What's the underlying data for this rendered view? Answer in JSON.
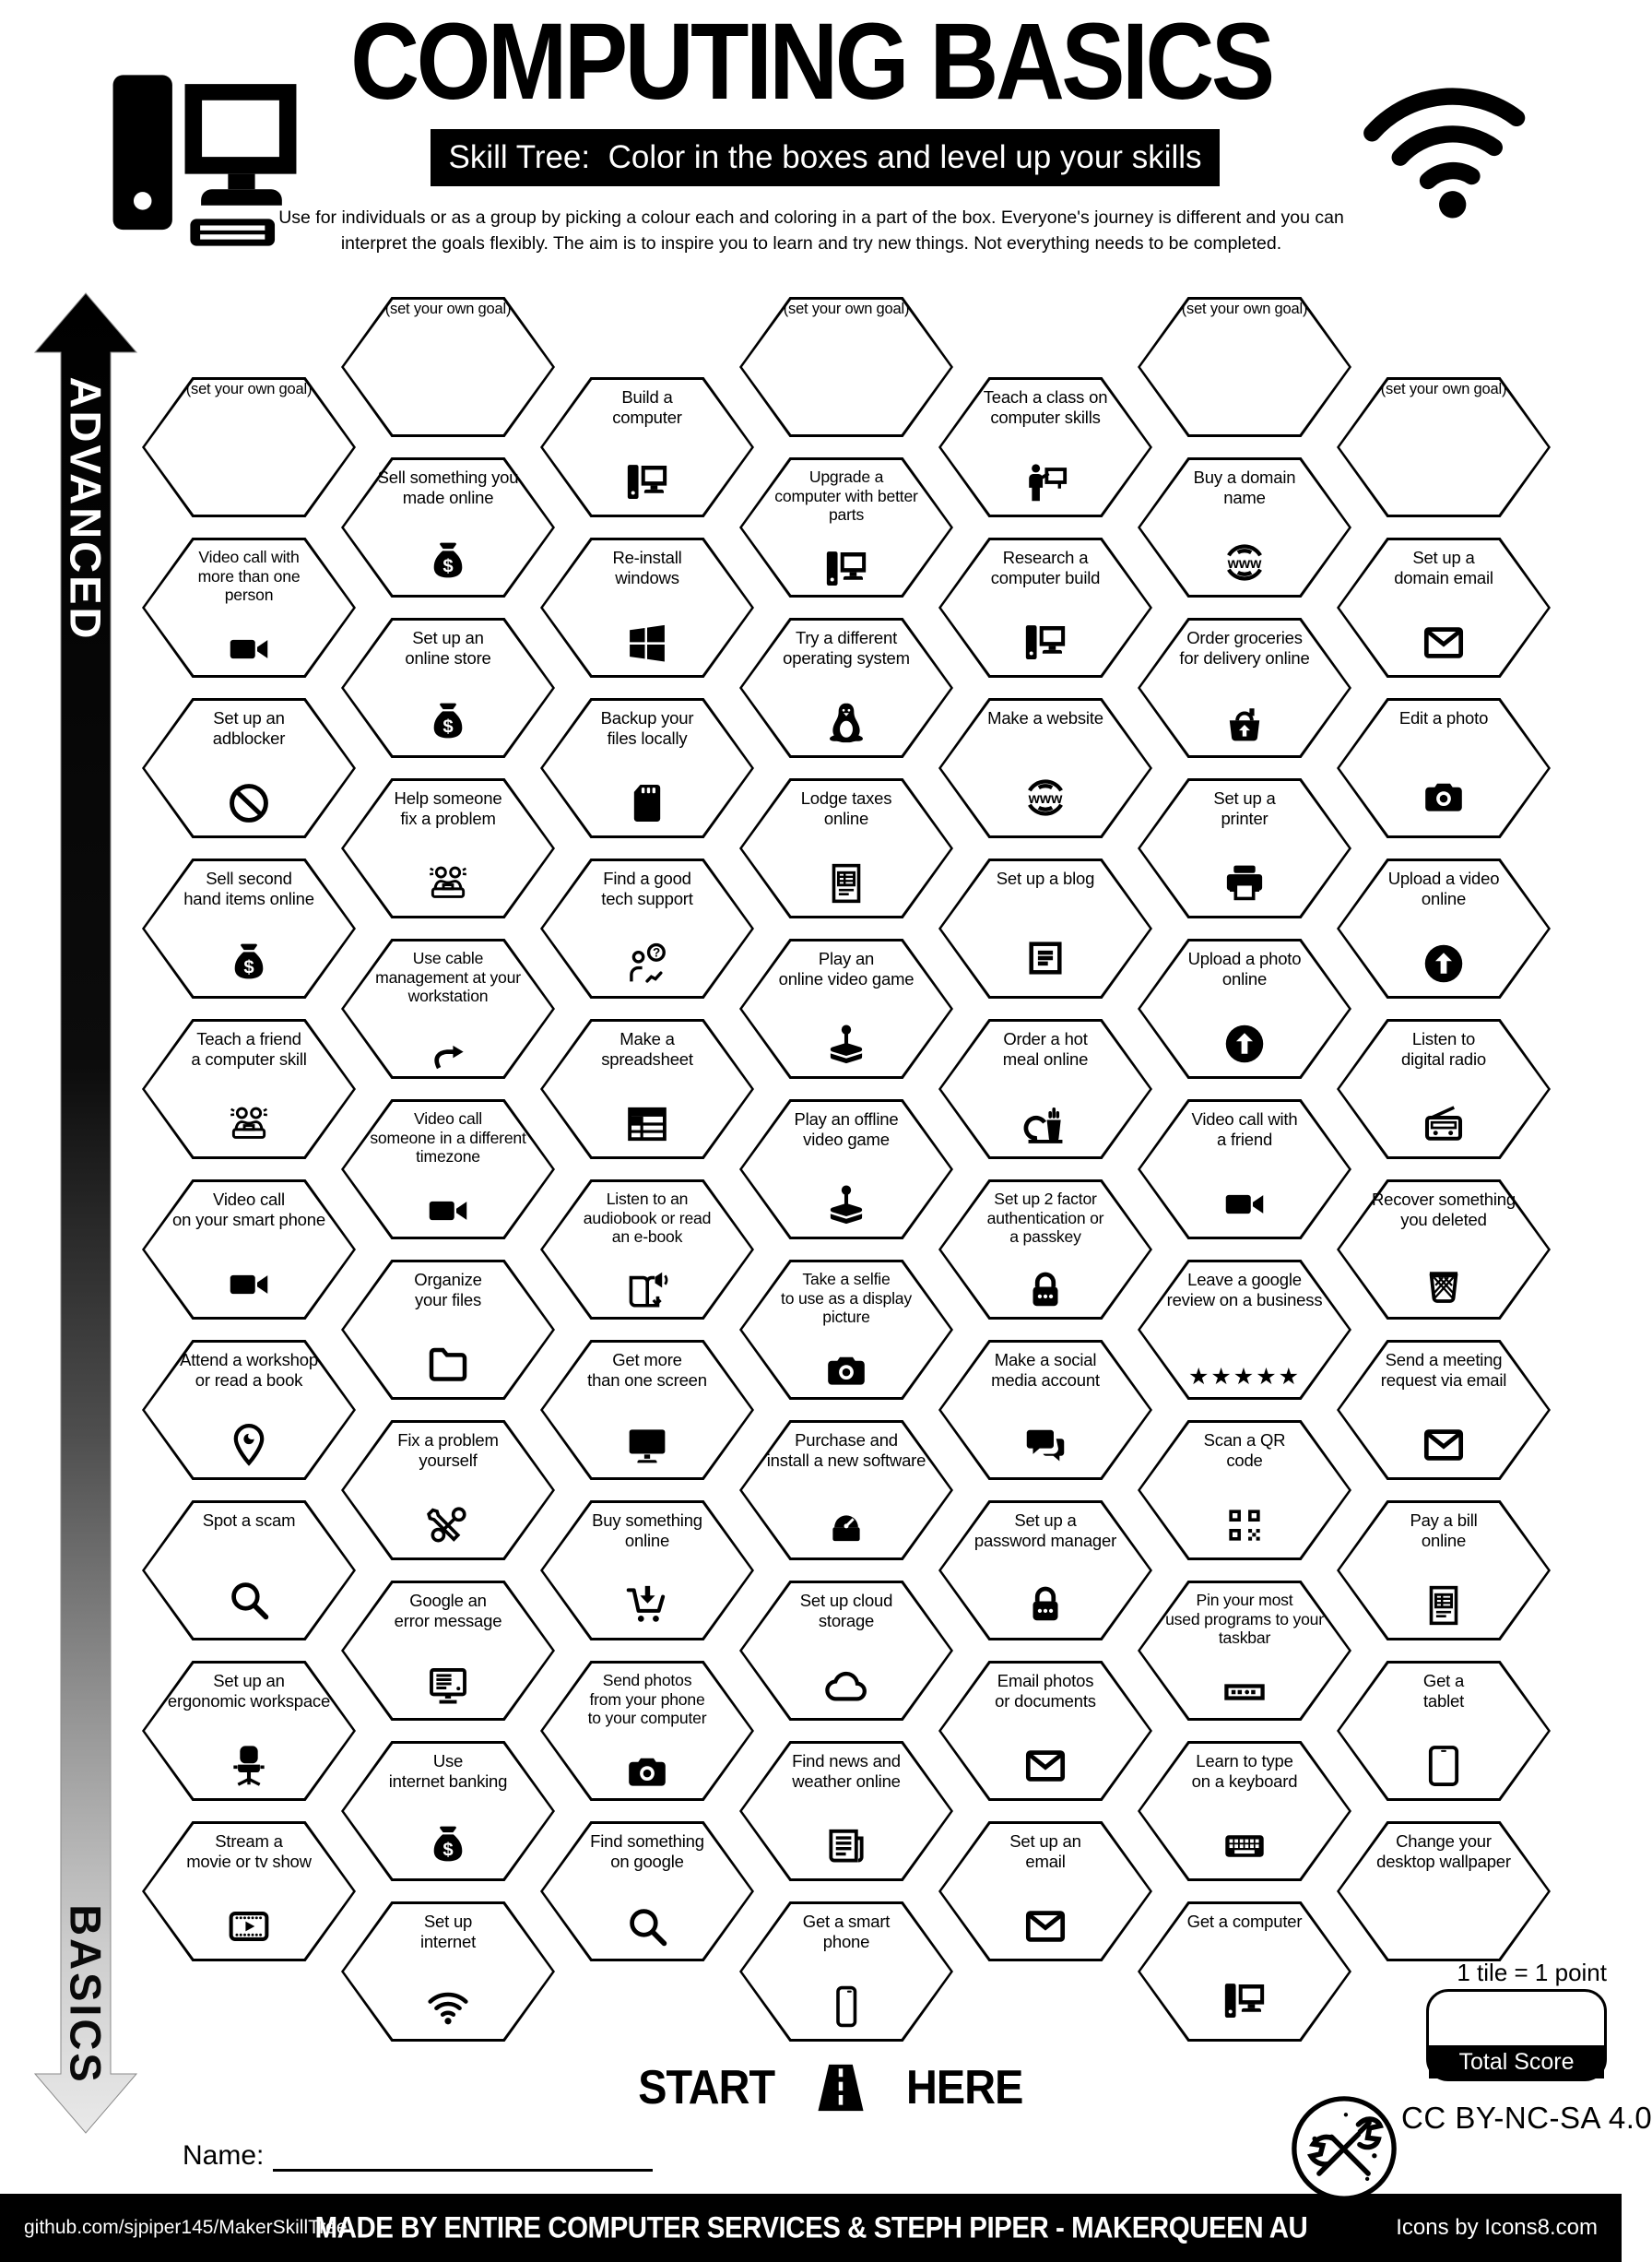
{
  "header": {
    "title": "COMPUTING BASICS",
    "subtitle": "Skill Tree:  Color in the boxes and level up your skills",
    "description_line1": "Use for individuals or as a group by picking a colour each and coloring in a part of the box.  Everyone's journey is different and you can",
    "description_line2": "interpret the goals flexibly.  The aim is to inspire you to learn and try new things. Not everything needs to be completed.",
    "computer_icon": "header-computer-icon",
    "wifi_icon": "wifi-icon"
  },
  "axis": {
    "top_label": "ADVANCED",
    "bottom_label": "BASICS"
  },
  "start": {
    "left_word": "START",
    "right_word": "HERE",
    "road_icon": "road-icon"
  },
  "name_label": "Name:",
  "score": {
    "note": "1 tile = 1 point",
    "box_label": "Total Score"
  },
  "license": {
    "text": "CC BY-NC-SA 4.0",
    "logo_icon": "cc-tools-icon"
  },
  "footer": {
    "left": "github.com/sjpiper145/MakerSkillTree",
    "center": "MADE BY ENTIRE COMPUTER SERVICES & STEPH PIPER  -  MAKERQUEEN AU",
    "right": "Icons by Icons8.com"
  },
  "colors": {
    "ink": "#000000",
    "paper": "#ffffff"
  },
  "tiles": [
    {
      "col": 1,
      "row": 0,
      "goal": true,
      "lines": [
        "(set your own goal)"
      ],
      "icon": null
    },
    {
      "col": 1,
      "row": 1,
      "lines": [
        "Video call with",
        "more than one",
        "person"
      ],
      "icon": "video-camera-icon"
    },
    {
      "col": 1,
      "row": 2,
      "lines": [
        "Set up an",
        "adblocker"
      ],
      "icon": "no-sign-icon"
    },
    {
      "col": 1,
      "row": 3,
      "lines": [
        "Sell second",
        "hand items online"
      ],
      "icon": "money-bag-icon"
    },
    {
      "col": 1,
      "row": 4,
      "lines": [
        "Teach a friend",
        "a computer skill"
      ],
      "icon": "people-pair-icon"
    },
    {
      "col": 1,
      "row": 5,
      "lines": [
        "Video call",
        "on your smart phone"
      ],
      "icon": "video-camera-icon"
    },
    {
      "col": 1,
      "row": 6,
      "lines": [
        "Attend a workshop",
        "or read a book"
      ],
      "icon": "location-pin-icon"
    },
    {
      "col": 1,
      "row": 7,
      "lines": [
        "Spot a scam"
      ],
      "icon": "magnifier-icon"
    },
    {
      "col": 1,
      "row": 8,
      "lines": [
        "Set up an",
        "ergonomic workspace"
      ],
      "icon": "office-chair-icon"
    },
    {
      "col": 1,
      "row": 9,
      "lines": [
        "Stream a",
        "movie or tv show"
      ],
      "icon": "film-play-icon"
    },
    {
      "col": 2,
      "row": 0,
      "goal": true,
      "lines": [
        "(set your own goal)"
      ],
      "icon": null
    },
    {
      "col": 2,
      "row": 1,
      "lines": [
        "Sell something you",
        "made online"
      ],
      "icon": "money-bag-icon"
    },
    {
      "col": 2,
      "row": 2,
      "lines": [
        "Set up an",
        "online store"
      ],
      "icon": "money-bag-icon"
    },
    {
      "col": 2,
      "row": 3,
      "lines": [
        "Help someone",
        "fix a problem"
      ],
      "icon": "people-pair-icon"
    },
    {
      "col": 2,
      "row": 4,
      "lines": [
        "Use cable",
        "management at your",
        "workstation"
      ],
      "icon": "curved-arrow-icon"
    },
    {
      "col": 2,
      "row": 5,
      "lines": [
        "Video call",
        "someone in a different",
        "timezone"
      ],
      "icon": "video-camera-icon"
    },
    {
      "col": 2,
      "row": 6,
      "lines": [
        "Organize",
        "your files"
      ],
      "icon": "folder-icon"
    },
    {
      "col": 2,
      "row": 7,
      "lines": [
        "Fix a problem",
        "yourself"
      ],
      "icon": "tools-icon"
    },
    {
      "col": 2,
      "row": 8,
      "lines": [
        "Google an",
        "error message"
      ],
      "icon": "monitor-error-icon"
    },
    {
      "col": 2,
      "row": 9,
      "lines": [
        "Use",
        "internet banking"
      ],
      "icon": "money-bag-icon"
    },
    {
      "col": 2,
      "row": 10,
      "lines": [
        "Set up",
        "internet"
      ],
      "icon": "wifi-icon"
    },
    {
      "col": 3,
      "row": 0,
      "lines": [
        "Build a",
        "computer"
      ],
      "icon": "desktop-computer-icon"
    },
    {
      "col": 3,
      "row": 1,
      "lines": [
        "Re-install",
        "windows"
      ],
      "icon": "windows-icon"
    },
    {
      "col": 3,
      "row": 2,
      "lines": [
        "Backup your",
        "files locally"
      ],
      "icon": "sd-card-icon"
    },
    {
      "col": 3,
      "row": 3,
      "lines": [
        "Find a good",
        "tech support"
      ],
      "icon": "support-icon"
    },
    {
      "col": 3,
      "row": 4,
      "lines": [
        "Make a",
        "spreadsheet"
      ],
      "icon": "spreadsheet-icon"
    },
    {
      "col": 3,
      "row": 5,
      "lines": [
        "Listen to an",
        "audiobook or read",
        "an e-book"
      ],
      "icon": "audiobook-icon"
    },
    {
      "col": 3,
      "row": 6,
      "lines": [
        "Get more",
        "than one screen"
      ],
      "icon": "monitor-icon"
    },
    {
      "col": 3,
      "row": 7,
      "lines": [
        "Buy something",
        "online"
      ],
      "icon": "cart-icon"
    },
    {
      "col": 3,
      "row": 8,
      "lines": [
        "Send photos",
        "from your phone",
        "to your computer"
      ],
      "icon": "camera-icon"
    },
    {
      "col": 3,
      "row": 9,
      "lines": [
        "Find something",
        "on google"
      ],
      "icon": "magnifier-icon"
    },
    {
      "col": 4,
      "row": 0,
      "goal": true,
      "lines": [
        "(set your own goal)"
      ],
      "icon": null
    },
    {
      "col": 4,
      "row": 1,
      "lines": [
        "Upgrade a",
        "computer with better",
        "parts"
      ],
      "icon": "desktop-computer-icon"
    },
    {
      "col": 4,
      "row": 2,
      "lines": [
        "Try a different",
        "operating system"
      ],
      "icon": "tux-icon"
    },
    {
      "col": 4,
      "row": 3,
      "lines": [
        "Lodge taxes",
        "online"
      ],
      "icon": "doc-table-icon"
    },
    {
      "col": 4,
      "row": 4,
      "lines": [
        "Play an",
        "online video game"
      ],
      "icon": "joystick-icon"
    },
    {
      "col": 4,
      "row": 5,
      "lines": [
        "Play an offline",
        "video game"
      ],
      "icon": "joystick-icon"
    },
    {
      "col": 4,
      "row": 6,
      "lines": [
        "Take a selfie",
        "to use as a display",
        "picture"
      ],
      "icon": "camera-icon"
    },
    {
      "col": 4,
      "row": 7,
      "lines": [
        "Purchase and",
        "install a new software"
      ],
      "icon": "installer-icon"
    },
    {
      "col": 4,
      "row": 8,
      "lines": [
        "Set up cloud",
        "storage"
      ],
      "icon": "cloud-icon"
    },
    {
      "col": 4,
      "row": 9,
      "lines": [
        "Find news and",
        "weather online"
      ],
      "icon": "newspaper-icon"
    },
    {
      "col": 4,
      "row": 10,
      "lines": [
        "Get a smart",
        "phone"
      ],
      "icon": "smartphone-icon"
    },
    {
      "col": 5,
      "row": 0,
      "lines": [
        "Teach a class on",
        "computer skills"
      ],
      "icon": "teacher-icon"
    },
    {
      "col": 5,
      "row": 1,
      "lines": [
        "Research a",
        "computer build"
      ],
      "icon": "desktop-computer-icon"
    },
    {
      "col": 5,
      "row": 2,
      "lines": [
        "Make a website"
      ],
      "icon": "www-globe-icon"
    },
    {
      "col": 5,
      "row": 3,
      "lines": [
        "Set up a blog"
      ],
      "icon": "blog-doc-icon"
    },
    {
      "col": 5,
      "row": 4,
      "lines": [
        "Order a hot",
        "meal online"
      ],
      "icon": "meal-icon"
    },
    {
      "col": 5,
      "row": 5,
      "lines": [
        "Set up 2 factor",
        "authentication or",
        "a passkey"
      ],
      "icon": "lock-icon"
    },
    {
      "col": 5,
      "row": 6,
      "lines": [
        "Make a social",
        "media account"
      ],
      "icon": "social-icon"
    },
    {
      "col": 5,
      "row": 7,
      "lines": [
        "Set up a",
        "password manager"
      ],
      "icon": "lock-icon"
    },
    {
      "col": 5,
      "row": 8,
      "lines": [
        "Email photos",
        "or documents"
      ],
      "icon": "envelope-icon"
    },
    {
      "col": 5,
      "row": 9,
      "lines": [
        "Set up an",
        "email"
      ],
      "icon": "envelope-icon"
    },
    {
      "col": 6,
      "row": 0,
      "goal": true,
      "lines": [
        "(set your own goal)"
      ],
      "icon": null
    },
    {
      "col": 6,
      "row": 1,
      "lines": [
        "Buy a domain",
        "name"
      ],
      "icon": "www-globe-icon"
    },
    {
      "col": 6,
      "row": 2,
      "lines": [
        "Order groceries",
        "for delivery online"
      ],
      "icon": "grocery-basket-icon"
    },
    {
      "col": 6,
      "row": 3,
      "lines": [
        "Set up a",
        "printer"
      ],
      "icon": "printer-icon"
    },
    {
      "col": 6,
      "row": 4,
      "lines": [
        "Upload a photo",
        "online"
      ],
      "icon": "upload-circle-icon"
    },
    {
      "col": 6,
      "row": 5,
      "lines": [
        "Video call with",
        "a friend"
      ],
      "icon": "video-camera-icon"
    },
    {
      "col": 6,
      "row": 6,
      "lines": [
        "Leave a google",
        "review on a business"
      ],
      "icon": "stars-icon"
    },
    {
      "col": 6,
      "row": 7,
      "lines": [
        "Scan a QR",
        "code"
      ],
      "icon": "qr-code-icon"
    },
    {
      "col": 6,
      "row": 8,
      "lines": [
        "Pin your most",
        "used programs to your",
        "taskbar"
      ],
      "icon": "taskbar-icon"
    },
    {
      "col": 6,
      "row": 9,
      "lines": [
        "Learn to type",
        "on a keyboard"
      ],
      "icon": "keyboard-icon"
    },
    {
      "col": 6,
      "row": 10,
      "lines": [
        "Get a computer"
      ],
      "icon": "desktop-computer-icon"
    },
    {
      "col": 7,
      "row": 0,
      "goal": true,
      "lines": [
        "(set your own goal)"
      ],
      "icon": null
    },
    {
      "col": 7,
      "row": 1,
      "lines": [
        "Set up a",
        "domain email"
      ],
      "icon": "envelope-icon"
    },
    {
      "col": 7,
      "row": 2,
      "lines": [
        "Edit a photo"
      ],
      "icon": "camera-icon"
    },
    {
      "col": 7,
      "row": 3,
      "lines": [
        "Upload a video",
        "online"
      ],
      "icon": "upload-circle-icon"
    },
    {
      "col": 7,
      "row": 4,
      "lines": [
        "Listen to",
        "digital radio"
      ],
      "icon": "radio-icon"
    },
    {
      "col": 7,
      "row": 5,
      "lines": [
        "Recover something",
        "you deleted"
      ],
      "icon": "trash-icon"
    },
    {
      "col": 7,
      "row": 6,
      "lines": [
        "Send a meeting",
        "request via email"
      ],
      "icon": "envelope-icon"
    },
    {
      "col": 7,
      "row": 7,
      "lines": [
        "Pay a bill",
        "online"
      ],
      "icon": "doc-table-icon"
    },
    {
      "col": 7,
      "row": 8,
      "lines": [
        "Get a",
        "tablet"
      ],
      "icon": "tablet-icon"
    },
    {
      "col": 7,
      "row": 9,
      "lines": [
        "Change your",
        "desktop wallpaper"
      ],
      "icon": "wallpaper-icon"
    }
  ]
}
